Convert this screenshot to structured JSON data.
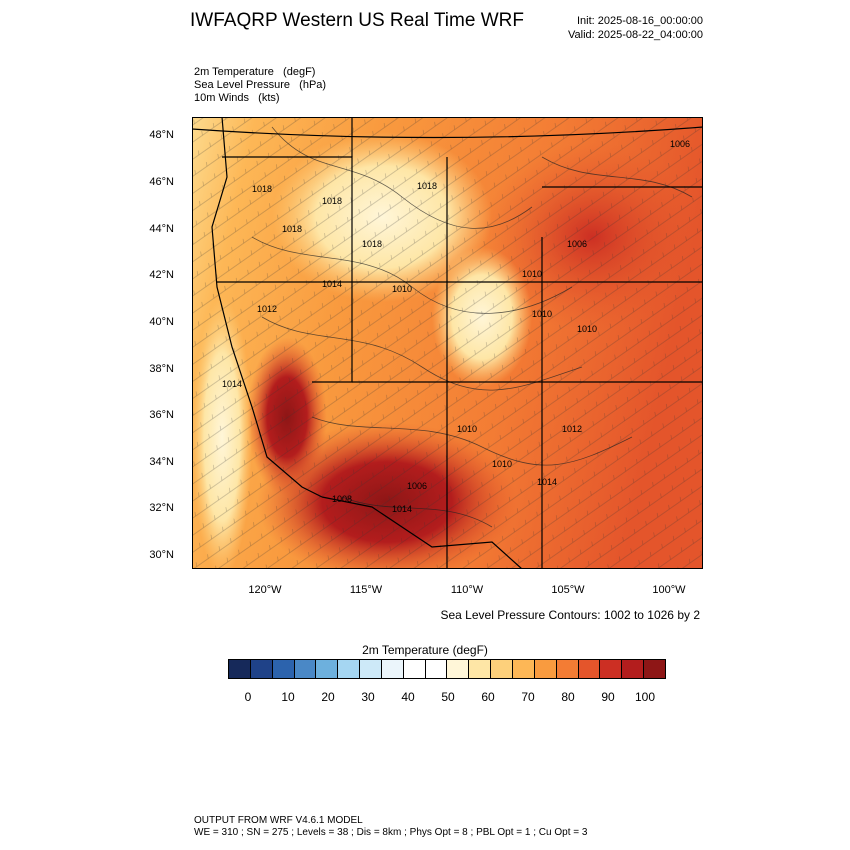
{
  "header": {
    "title": "IWFAQRP Western US Real Time WRF",
    "init": "Init: 2025-08-16_00:00:00",
    "valid": "Valid: 2025-08-22_04:00:00"
  },
  "fields": [
    "2m Temperature   (degF)",
    "Sea Level Pressure   (hPa)",
    "10m Winds   (kts)"
  ],
  "map": {
    "lat_labels": [
      "48°N",
      "46°N",
      "44°N",
      "42°N",
      "40°N",
      "38°N",
      "36°N",
      "34°N",
      "32°N",
      "30°N"
    ],
    "lon_labels": [
      "120°W",
      "115°W",
      "110°W",
      "105°W",
      "100°W"
    ],
    "isobar_labels": [
      "1006",
      "1018",
      "1018",
      "1018",
      "1018",
      "1018",
      "1006",
      "1010",
      "1014",
      "1012",
      "1010",
      "1010",
      "1010",
      "1014",
      "1010",
      "1012",
      "1010",
      "1006",
      "1008",
      "1014",
      "1014"
    ],
    "contour_note": "Sea Level Pressure Contours: 1002 to 1026 by 2"
  },
  "colorbar": {
    "title": "2m Temperature  (degF)",
    "colors": [
      "#16295a",
      "#1f4288",
      "#2c63ad",
      "#4a88c6",
      "#6db0dd",
      "#a5d6f2",
      "#cde9f8",
      "#ebf5fb",
      "#ffffff",
      "#ffffff",
      "#fff6d8",
      "#fee6a6",
      "#fdd07b",
      "#fdb756",
      "#f99b3f",
      "#f37c34",
      "#e4552b",
      "#cc2f23",
      "#b31d1d",
      "#8e1616"
    ],
    "ticks": [
      "0",
      "10",
      "20",
      "30",
      "40",
      "50",
      "60",
      "70",
      "80",
      "90",
      "100"
    ]
  },
  "footer": {
    "line1": "OUTPUT FROM WRF V4.6.1 MODEL",
    "line2": "WE = 310 ; SN = 275 ; Levels = 38 ; Dis = 8km ; Phys Opt = 8 ; PBL Opt = 1 ; Cu Opt = 3"
  }
}
